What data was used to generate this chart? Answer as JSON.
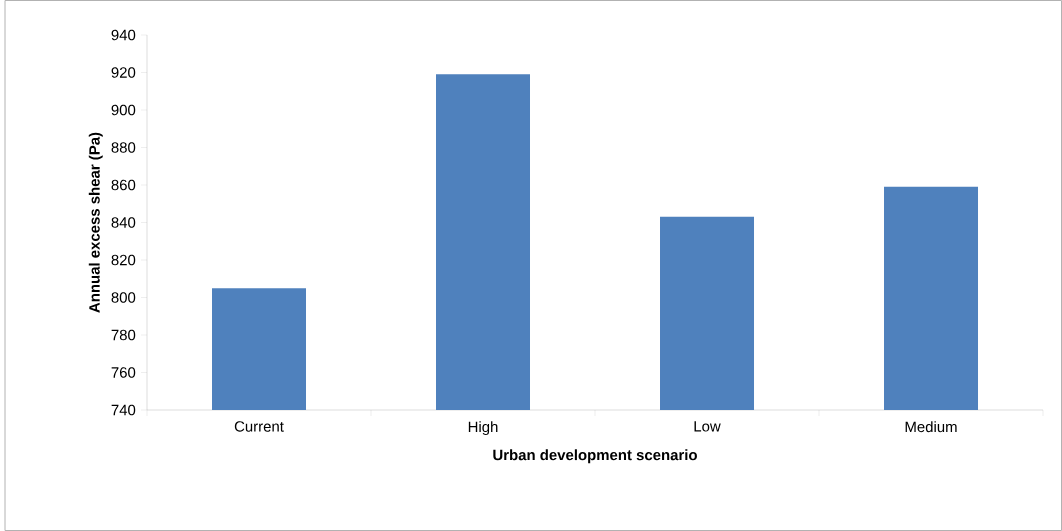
{
  "chart_data": {
    "type": "bar",
    "xlabel": "Urban development scenario",
    "ylabel": "Annual excess shear (Pa)",
    "categories": [
      "Current",
      "High",
      "Low",
      "Medium"
    ],
    "values": [
      805,
      919,
      843,
      859
    ],
    "color": "#4f81bd",
    "ylim": [
      740,
      940
    ],
    "yticks": [
      740,
      760,
      780,
      800,
      820,
      840,
      860,
      880,
      900,
      920,
      940
    ],
    "grid": false
  }
}
